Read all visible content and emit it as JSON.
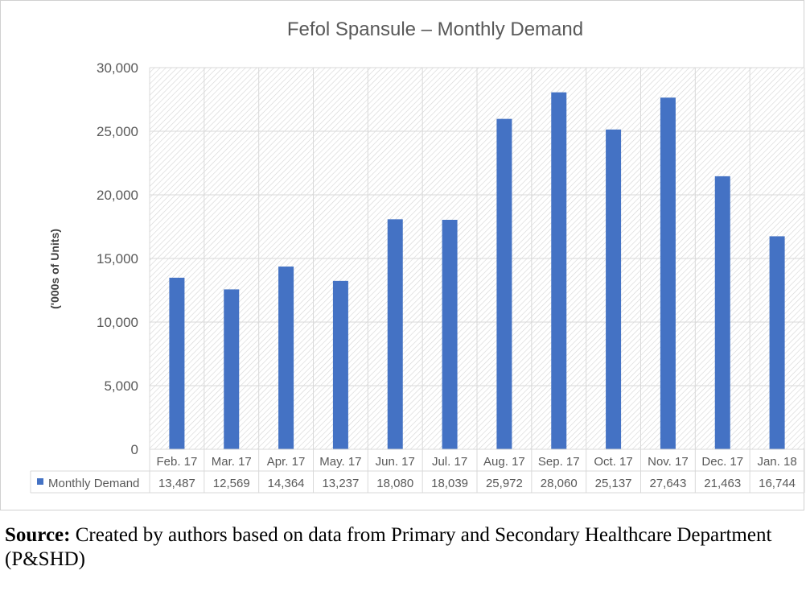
{
  "chart_data": {
    "type": "bar",
    "title": "Fefol Spansule – Monthly Demand",
    "xlabel": "",
    "ylabel": "('000s of Units)",
    "categories": [
      "Feb. 17",
      "Mar. 17",
      "Apr. 17",
      "May. 17",
      "Jun. 17",
      "Jul. 17",
      "Aug. 17",
      "Sep. 17",
      "Oct. 17",
      "Nov. 17",
      "Dec. 17",
      "Jan. 18"
    ],
    "series": [
      {
        "name": "Monthly Demand",
        "values": [
          13487,
          12569,
          14364,
          13237,
          18080,
          18039,
          25972,
          28060,
          25137,
          27643,
          21463,
          16744
        ],
        "color": "#4472c4"
      }
    ],
    "ylim": [
      0,
      30000
    ],
    "yticks": [
      0,
      5000,
      10000,
      15000,
      20000,
      25000,
      30000
    ],
    "ytick_labels": [
      "0",
      "5,000",
      "10,000",
      "15,000",
      "20,000",
      "25,000",
      "30,000"
    ],
    "data_table": {
      "values": [
        "13,487",
        "12,569",
        "14,364",
        "13,237",
        "18,080",
        "18,039",
        "25,972",
        "28,060",
        "25,137",
        "27,643",
        "21,463",
        "16,744"
      ]
    },
    "grid": true,
    "plot_area_pattern": "diagonal-hatch",
    "legend": "data-table-row"
  },
  "source": {
    "label": "Source:",
    "text": " Created by authors based on data from Primary and Secondary Healthcare Department (P&SHD)"
  }
}
